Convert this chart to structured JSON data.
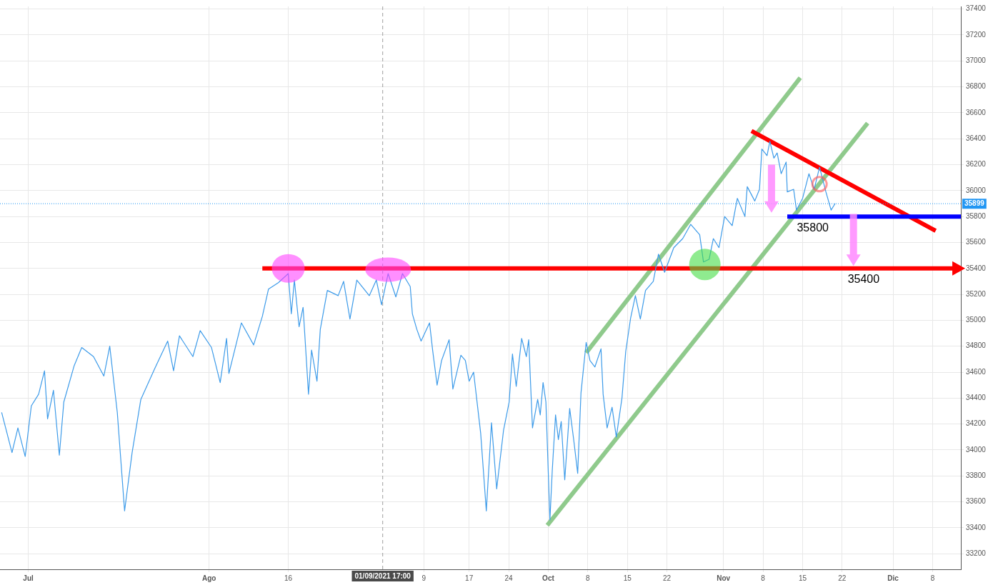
{
  "chart_data": {
    "type": "line",
    "xlim": [
      "2021-06-26",
      "2021-12-13"
    ],
    "xticks": [
      {
        "value": "2021-07-01",
        "label": "Jul"
      },
      {
        "value": "2021-08-02",
        "label": "Ago"
      },
      {
        "value": "2021-08-16",
        "label": "16"
      },
      {
        "value": "2021-09-09",
        "label": "9"
      },
      {
        "value": "2021-09-17",
        "label": "17"
      },
      {
        "value": "2021-09-24",
        "label": "24"
      },
      {
        "value": "2021-10-01",
        "label": "Oct"
      },
      {
        "value": "2021-10-08",
        "label": "8"
      },
      {
        "value": "2021-10-15",
        "label": "15"
      },
      {
        "value": "2021-10-22",
        "label": "22"
      },
      {
        "value": "2021-11-01",
        "label": "Nov"
      },
      {
        "value": "2021-11-08",
        "label": "8"
      },
      {
        "value": "2021-11-15",
        "label": "15"
      },
      {
        "value": "2021-11-22",
        "label": "22"
      },
      {
        "value": "2021-12-01",
        "label": "Dic"
      },
      {
        "value": "2021-12-08",
        "label": "8"
      }
    ],
    "ylim": [
      33080,
      37420
    ],
    "yticks": [
      33200,
      33400,
      33600,
      33800,
      34000,
      34200,
      34400,
      34600,
      34800,
      35000,
      35200,
      35400,
      35600,
      35800,
      36000,
      36200,
      36400,
      36600,
      36800,
      37000,
      37200,
      37400
    ],
    "grid": true,
    "series": [
      {
        "color": "#3d9be9",
        "x": [
          "2021-06-26T07:00",
          "2021-06-28T03:00",
          "2021-06-29T04:00",
          "2021-06-30T11:00",
          "2021-07-01T13:00",
          "2021-07-02T20:00",
          "2021-07-03T21:00",
          "2021-07-04T10:00",
          "2021-07-05T11:00",
          "2021-07-06T12:00",
          "2021-07-07T07:00",
          "2021-07-09T03:00",
          "2021-07-10T11:00",
          "2021-07-12T13:00",
          "2021-07-14T09:00",
          "2021-07-15T10:00",
          "2021-07-16T18:00",
          "2021-07-18T01:00",
          "2021-07-19T09:00",
          "2021-07-20T22:00",
          "2021-07-23T07:00",
          "2021-07-25T16:00",
          "2021-07-26T17:00",
          "2021-07-27T18:00",
          "2021-07-30T03:00",
          "2021-07-31T10:00",
          "2021-08-02T10:00",
          "2021-08-03T23:00",
          "2021-08-05T02:00",
          "2021-08-05T12:00",
          "2021-08-07T17:00",
          "2021-08-09T21:00",
          "2021-08-11T10:00",
          "2021-08-12T12:00",
          "2021-08-14T06:00",
          "2021-08-16T00:00",
          "2021-08-16T13:00",
          "2021-08-17T02:00",
          "2021-08-17T22:00",
          "2021-08-18T15:00",
          "2021-08-19T14:00",
          "2021-08-20T03:00",
          "2021-08-21T02:00",
          "2021-08-21T16:00",
          "2021-08-22T22:00",
          "2021-08-24T20:00",
          "2021-08-25T19:00",
          "2021-08-26T22:00",
          "2021-08-28T03:00",
          "2021-08-30T08:00",
          "2021-08-31T14:00",
          "2021-09-01T12:00",
          "2021-09-02T16:00",
          "2021-09-04T01:00",
          "2021-09-05T05:00",
          "2021-09-06T14:00",
          "2021-09-06T23:00",
          "2021-09-07T18:00",
          "2021-09-08T12:00",
          "2021-09-10T00:00",
          "2021-09-10T13:00",
          "2021-09-11T08:00",
          "2021-09-12T03:00",
          "2021-09-13T11:00",
          "2021-09-14T03:00",
          "2021-09-15T13:00",
          "2021-09-16T08:00",
          "2021-09-17T00:00",
          "2021-09-17T19:00",
          "2021-09-19T01:00",
          "2021-09-20T01:00",
          "2021-09-20T23:00",
          "2021-09-21T21:00",
          "2021-09-23T02:00",
          "2021-09-24T02:00",
          "2021-09-24T16:00",
          "2021-09-25T08:00",
          "2021-09-26T07:00",
          "2021-09-27T03:00",
          "2021-09-27T13:00",
          "2021-09-28T05:00",
          "2021-09-29T03:00",
          "2021-09-29T14:00",
          "2021-09-30T02:00",
          "2021-09-30T14:00",
          "2021-10-01T07:00",
          "2021-10-01T17:00",
          "2021-10-02T07:00",
          "2021-10-02T19:00",
          "2021-10-03T07:00",
          "2021-10-03T22:00",
          "2021-10-04T19:00",
          "2021-10-05T12:00",
          "2021-10-06T05:00",
          "2021-10-06T19:00",
          "2021-10-07T17:00",
          "2021-10-08T09:00",
          "2021-10-09T06:00",
          "2021-10-10T08:00",
          "2021-10-10T17:00",
          "2021-10-11T10:00",
          "2021-10-12T07:00",
          "2021-10-13T01:00",
          "2021-10-14T01:00",
          "2021-10-14T17:00",
          "2021-10-15T14:00",
          "2021-10-16T10:00",
          "2021-10-17T07:00",
          "2021-10-18T05:00",
          "2021-10-19T14:00",
          "2021-10-20T12:00",
          "2021-10-21T14:00",
          "2021-10-23T05:00",
          "2021-10-24T19:00",
          "2021-10-26T05:00",
          "2021-10-27T19:00",
          "2021-10-28T11:00",
          "2021-10-29T11:00",
          "2021-10-30T05:00",
          "2021-10-31T05:00",
          "2021-11-01T05:00",
          "2021-11-02T13:00",
          "2021-11-03T11:00",
          "2021-11-04T19:00",
          "2021-11-05T05:00",
          "2021-11-06T13:00",
          "2021-11-07T09:00",
          "2021-11-07T19:00",
          "2021-11-08T17:00",
          "2021-11-09T05:00",
          "2021-11-09T22:00",
          "2021-11-10T12:00",
          "2021-11-11T05:00",
          "2021-11-12T02:00",
          "2021-11-12T07:00",
          "2021-11-13T10:00",
          "2021-11-13T22:00",
          "2021-11-15T00:00",
          "2021-11-16T03:00",
          "2021-11-17T01:00",
          "2021-11-18T00:00",
          "2021-11-19T03:00",
          "2021-11-20T01:00",
          "2021-11-20T18:00"
        ],
        "values": [
          34290,
          33980,
          34170,
          33950,
          34340,
          34430,
          34610,
          34240,
          34460,
          33960,
          34370,
          34650,
          34790,
          34720,
          34570,
          34800,
          34290,
          33530,
          33980,
          34390,
          34620,
          34840,
          34610,
          34880,
          34720,
          34920,
          34790,
          34520,
          34860,
          34590,
          34980,
          34810,
          35030,
          35240,
          35290,
          35360,
          35050,
          35310,
          34950,
          35100,
          34430,
          34770,
          34530,
          34930,
          35230,
          35190,
          35300,
          35010,
          35310,
          35190,
          35310,
          35120,
          35360,
          35180,
          35360,
          35260,
          35050,
          34930,
          34840,
          34980,
          34770,
          34500,
          34690,
          34850,
          34470,
          34730,
          34690,
          34530,
          34600,
          34130,
          33530,
          34210,
          33700,
          34150,
          34370,
          34740,
          34490,
          34860,
          34720,
          34850,
          34170,
          34390,
          34270,
          34520,
          34370,
          33460,
          33840,
          34270,
          34080,
          34220,
          33770,
          34320,
          34080,
          33820,
          34440,
          34830,
          34690,
          34640,
          34780,
          34430,
          34170,
          34330,
          34100,
          34400,
          34760,
          35020,
          35190,
          35010,
          35230,
          35300,
          35510,
          35370,
          35560,
          35630,
          35740,
          35660,
          35450,
          35470,
          35630,
          35560,
          35800,
          35730,
          35940,
          35800,
          36030,
          35920,
          36010,
          36320,
          36270,
          36380,
          36250,
          36290,
          36130,
          36220,
          35990,
          36010,
          35850,
          35940,
          36130,
          36010,
          36180,
          35990,
          35850,
          35900
        ]
      },
      {
        "color": "#ff0000",
        "x": [
          "2021-08-11T10:00",
          "2021-12-12T00:00"
        ],
        "values": [
          35400,
          35400
        ]
      },
      {
        "color": "#0000ff",
        "x": [
          "2021-11-12T07:00",
          "2021-12-13T00:00"
        ],
        "values": [
          35800,
          35800
        ]
      },
      {
        "color": "#ff0000",
        "x": [
          "2021-11-05T23:00",
          "2021-12-08T13:00"
        ],
        "values": [
          36460,
          35690
        ]
      },
      {
        "color": "#8fca8c",
        "x": [
          "2021-10-07T17:00",
          "2021-11-14T14:00"
        ],
        "values": [
          34750,
          36870
        ]
      },
      {
        "color": "#8fca8c",
        "x": [
          "2021-09-30T20:00",
          "2021-11-26T12:00"
        ],
        "values": [
          33420,
          36520
        ]
      }
    ],
    "ref_lines": [
      {
        "axis": "y",
        "value": 35899,
        "label": "35899",
        "color": "#2196f3",
        "line_style": "dotted"
      },
      {
        "axis": "x",
        "value": "2021-09-01T17:00",
        "label": "01/09/2021 17:00",
        "color": "#9e9e9e",
        "line_style": "dashed"
      }
    ],
    "annotations": [
      {
        "text": "35800",
        "x": "2021-11-15T00:00",
        "y": 35800
      },
      {
        "text": "35400",
        "x": "2021-11-24T00:00",
        "y": 35400
      }
    ]
  }
}
